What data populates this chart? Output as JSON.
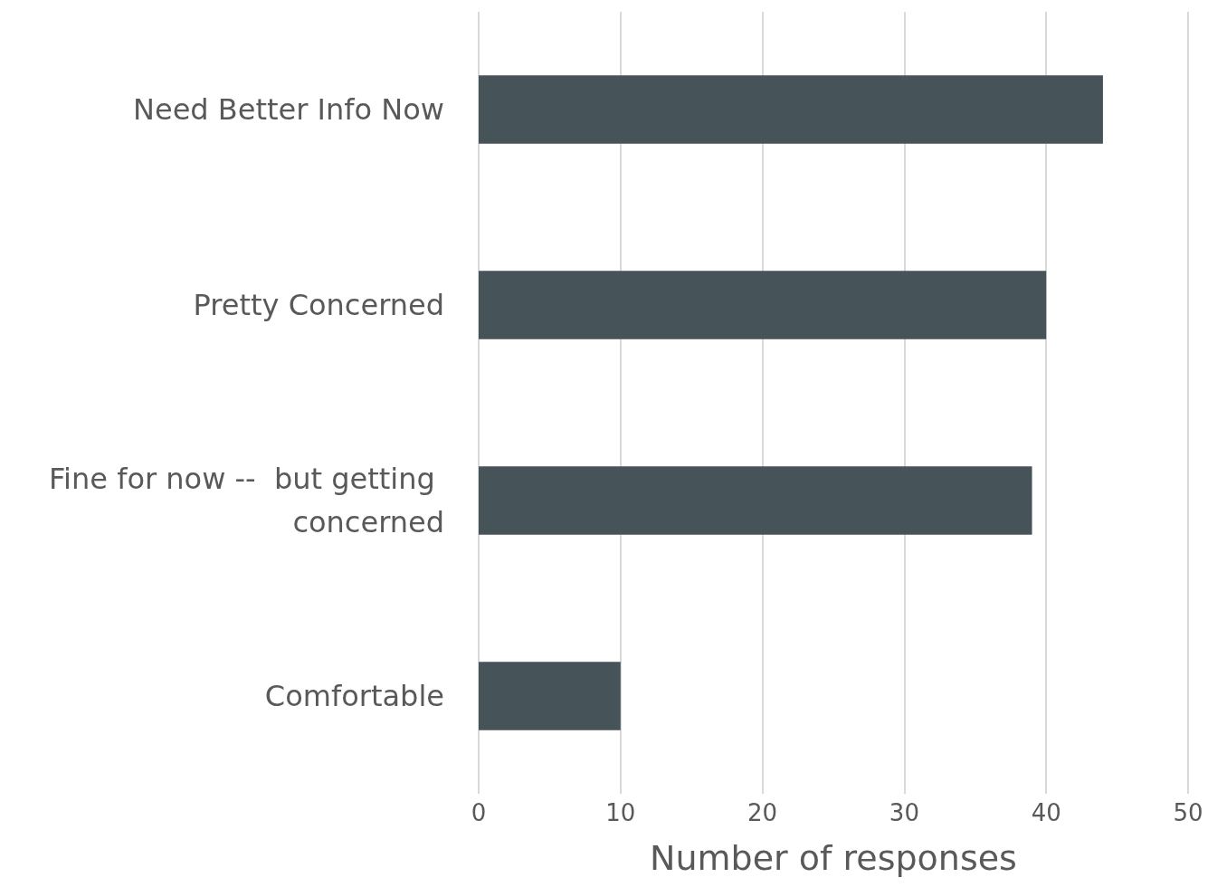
{
  "chart_data": {
    "type": "bar",
    "orientation": "horizontal",
    "xlabel": "Number of responses",
    "categories": [
      "Need Better Info Now",
      "Pretty Concerned",
      "Fine for now --  but getting concerned",
      "Comfortable"
    ],
    "values": [
      44,
      40,
      39,
      10
    ],
    "color": "#465359",
    "xlim": [
      0,
      50
    ],
    "xticks": [
      0,
      10,
      20,
      30,
      40,
      50
    ],
    "grid": "x"
  }
}
